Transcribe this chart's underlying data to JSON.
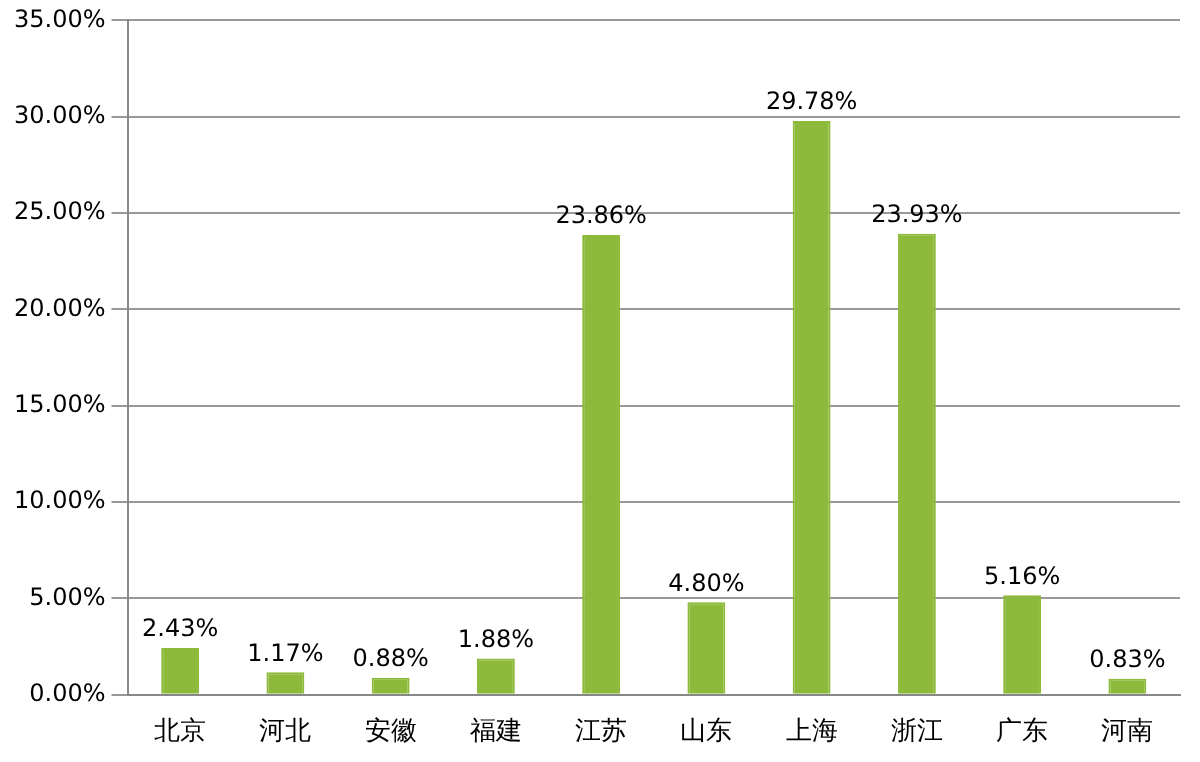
{
  "chart_data": {
    "type": "bar",
    "categories": [
      "北京",
      "河北",
      "安徽",
      "福建",
      "江苏",
      "山东",
      "上海",
      "浙江",
      "广东",
      "河南"
    ],
    "values": [
      2.43,
      1.17,
      0.88,
      1.88,
      23.86,
      4.8,
      29.78,
      23.93,
      5.16,
      0.83
    ],
    "value_labels": [
      "2.43%",
      "1.17%",
      "0.88%",
      "1.88%",
      "23.86%",
      "4.80%",
      "29.78%",
      "23.93%",
      "5.16%",
      "0.83%"
    ],
    "color": "#8dba3a",
    "ylim": [
      0,
      35
    ],
    "yticks": [
      {
        "value": 0,
        "label": "0.00%"
      },
      {
        "value": 5,
        "label": "5.00%"
      },
      {
        "value": 10,
        "label": "10.00%"
      },
      {
        "value": 15,
        "label": "15.00%"
      },
      {
        "value": 20,
        "label": "20.00%"
      },
      {
        "value": 25,
        "label": "25.00%"
      },
      {
        "value": 30,
        "label": "30.00%"
      },
      {
        "value": 35,
        "label": "35.00%"
      }
    ],
    "grid": "y",
    "legend": false
  }
}
